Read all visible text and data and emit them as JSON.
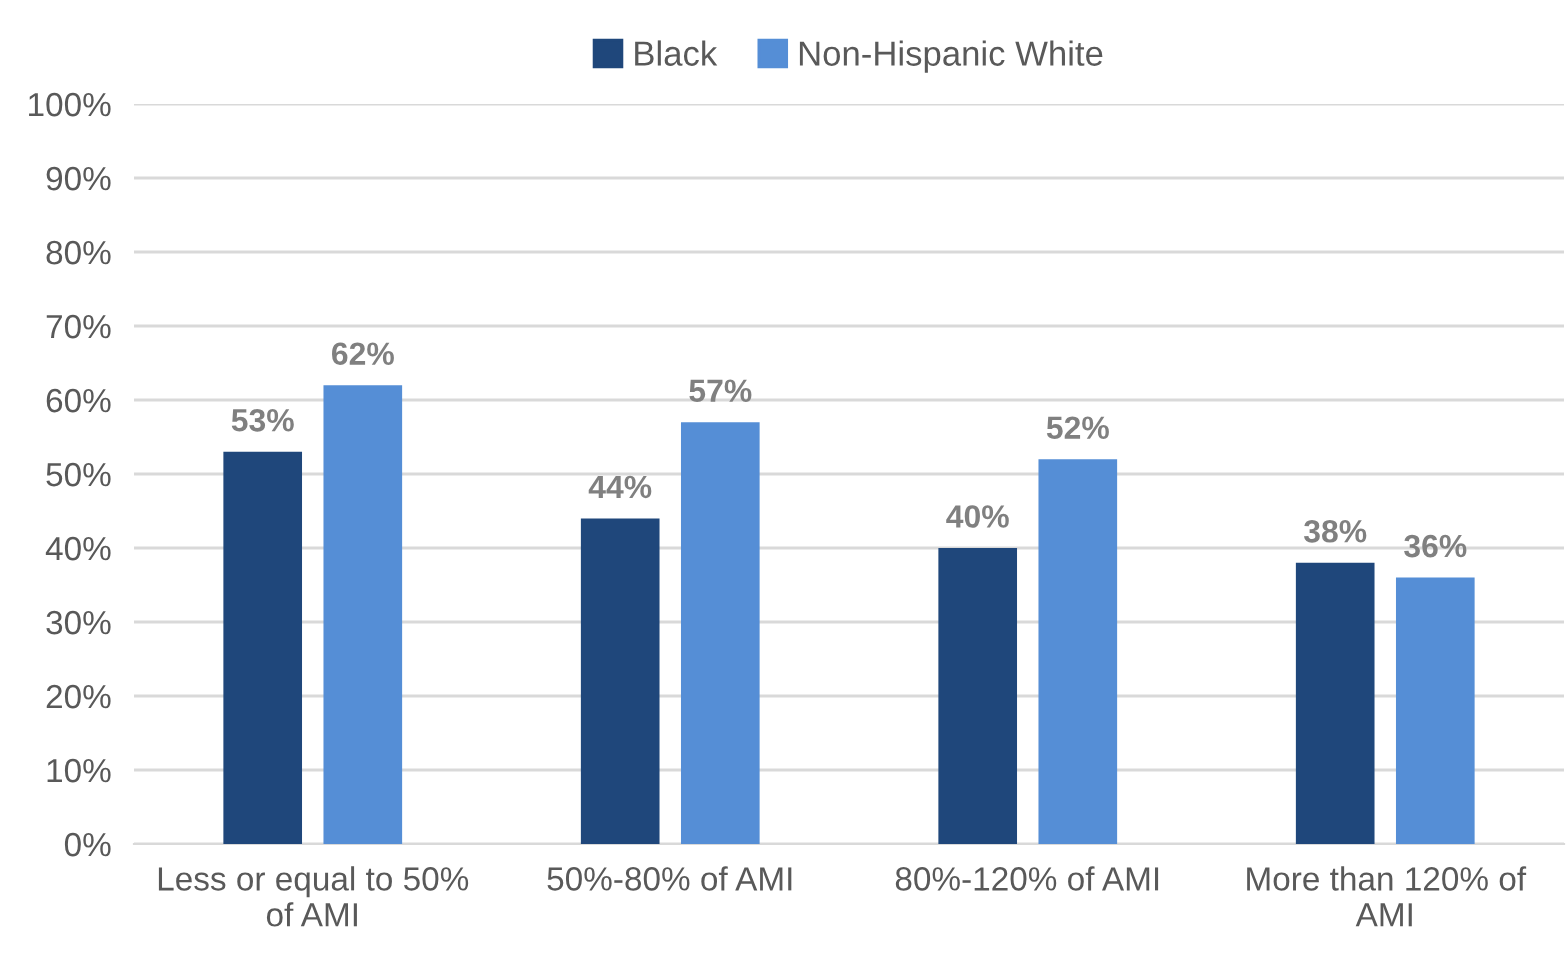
{
  "chart_data": {
    "type": "bar",
    "categories": [
      "Less or equal to 50%\nof AMI",
      "50%-80% of AMI",
      "80%-120% of AMI",
      "More than 120% of\nAMI"
    ],
    "series": [
      {
        "name": "Black",
        "color": "#1f477b",
        "values": [
          53,
          44,
          40,
          38
        ],
        "value_labels": [
          "53%",
          "44%",
          "40%",
          "38%"
        ]
      },
      {
        "name": "Non-Hispanic White",
        "color": "#558ed6",
        "values": [
          62,
          57,
          52,
          36
        ],
        "value_labels": [
          "62%",
          "57%",
          "52%",
          "36%"
        ]
      }
    ],
    "ylim": [
      0,
      100
    ],
    "yticks": [
      {
        "value": 0,
        "label": "0%"
      },
      {
        "value": 10,
        "label": "10%"
      },
      {
        "value": 20,
        "label": "20%"
      },
      {
        "value": 30,
        "label": "30%"
      },
      {
        "value": 40,
        "label": "40%"
      },
      {
        "value": 50,
        "label": "50%"
      },
      {
        "value": 60,
        "label": "60%"
      },
      {
        "value": 70,
        "label": "70%"
      },
      {
        "value": 80,
        "label": "80%"
      },
      {
        "value": 90,
        "label": "90%"
      },
      {
        "value": 100,
        "label": "100%"
      }
    ],
    "grid": "y",
    "legend": "top"
  }
}
